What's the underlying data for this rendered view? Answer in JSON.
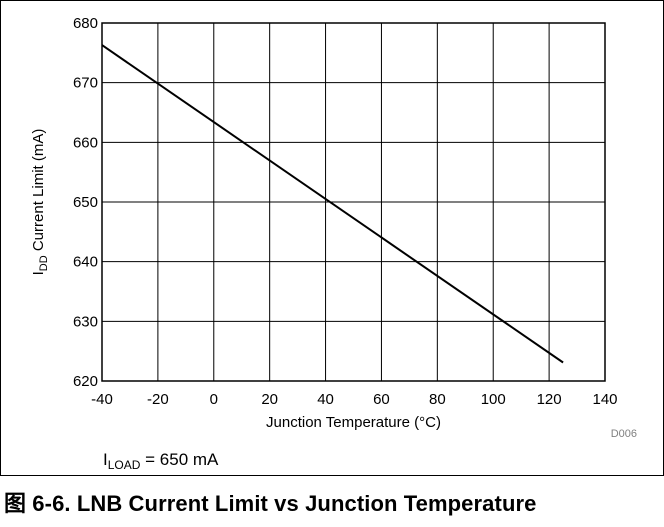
{
  "chart_data": {
    "type": "line",
    "xlabel": "Junction Temperature (°C)",
    "ylabel_main": "I",
    "ylabel_sub": "DD",
    "ylabel_rest": " Current Limit (mA)",
    "xlim": [
      -40,
      140
    ],
    "ylim": [
      620,
      680
    ],
    "x_ticks": [
      -40,
      -20,
      0,
      20,
      40,
      60,
      80,
      100,
      120,
      140
    ],
    "y_ticks": [
      620,
      630,
      640,
      650,
      660,
      670,
      680
    ],
    "grid": true,
    "series": [
      {
        "x": [
          -40,
          125
        ],
        "y": [
          676.3,
          623.1
        ],
        "color": "#000000"
      }
    ],
    "figure_id": "D006"
  },
  "note": {
    "prefix": "I",
    "sub": "LOAD",
    "rest": " = 650 mA"
  },
  "caption": "图 6-6. LNB Current Limit vs Junction Temperature"
}
